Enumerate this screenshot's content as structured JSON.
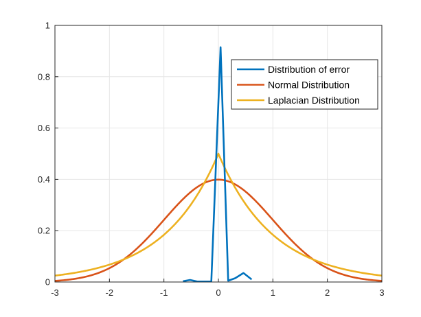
{
  "chart_data": {
    "type": "line",
    "title": "",
    "xlabel": "",
    "ylabel": "",
    "xlim": [
      -3,
      3
    ],
    "ylim": [
      0,
      1
    ],
    "xticks": [
      "-3",
      "-2",
      "-1",
      "0",
      "1",
      "2",
      "3"
    ],
    "yticks": [
      "0",
      "0.2",
      "0.4",
      "0.6",
      "0.8",
      "1"
    ],
    "grid": true,
    "legend_position": "top-right",
    "series": [
      {
        "name": "Distribution of error",
        "color": "#0072BD",
        "x": [
          -0.65,
          -0.52,
          -0.39,
          -0.26,
          -0.13,
          0.04,
          0.18,
          0.31,
          0.46,
          0.61
        ],
        "y": [
          0.003,
          0.008,
          0.002,
          0.002,
          0.002,
          0.915,
          0.005,
          0.015,
          0.035,
          0.01
        ]
      },
      {
        "name": "Normal Distribution",
        "color": "#D95319",
        "function": "normal",
        "mu": 0,
        "sigma": 1
      },
      {
        "name": "Laplacian Distribution",
        "color": "#EDB120",
        "function": "laplace",
        "mu": 0,
        "b": 1
      }
    ]
  }
}
